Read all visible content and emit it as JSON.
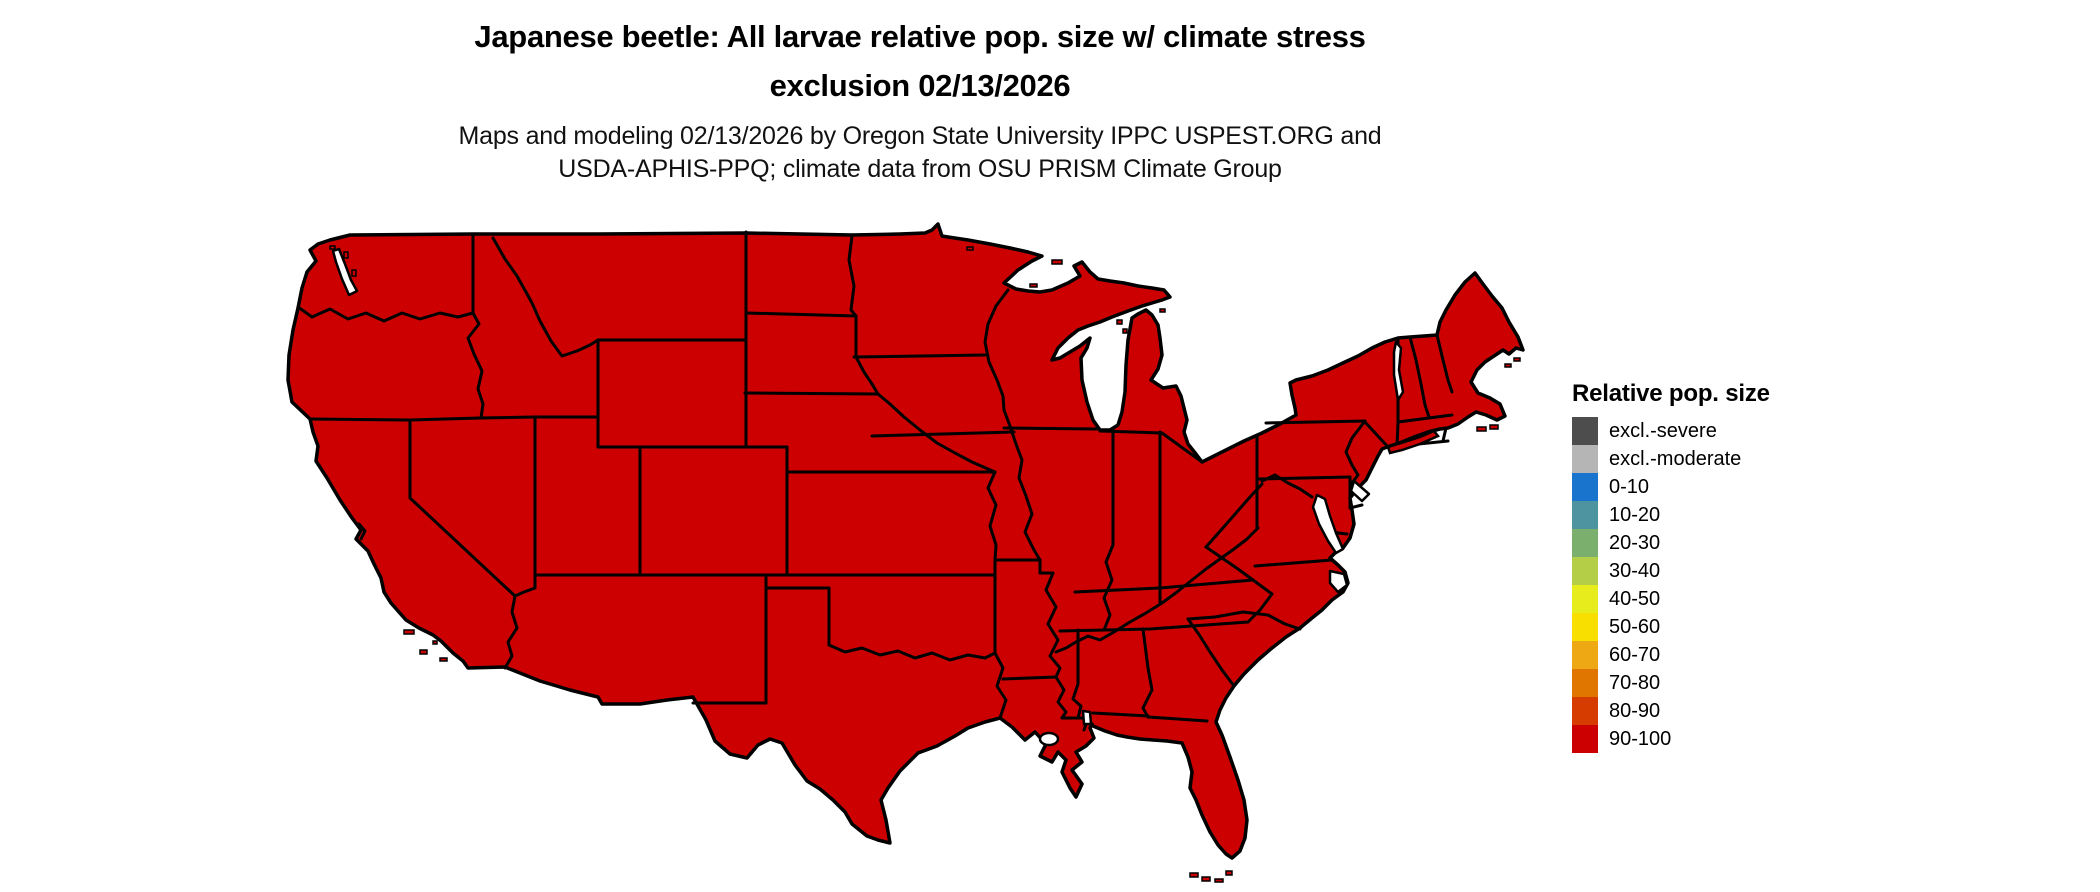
{
  "title": {
    "line1": "Japanese beetle: All larvae relative pop. size w/ climate stress",
    "line2": "exclusion 02/13/2026"
  },
  "subtitle": {
    "line1": "Maps and modeling 02/13/2026 by Oregon State University IPPC USPEST.ORG and",
    "line2": "USDA-APHIS-PPQ; climate data from OSU PRISM Climate Group"
  },
  "legend": {
    "title": "Relative pop. size",
    "items": [
      {
        "label": "excl.-severe",
        "color": "#4D4D4D"
      },
      {
        "label": "excl.-moderate",
        "color": "#B5B5B5"
      },
      {
        "label": "0-10",
        "color": "#1874CD"
      },
      {
        "label": "10-20",
        "color": "#4D94A0"
      },
      {
        "label": "20-30",
        "color": "#7BAF6E"
      },
      {
        "label": "30-40",
        "color": "#B5CE47"
      },
      {
        "label": "40-50",
        "color": "#E7EC1C"
      },
      {
        "label": "50-60",
        "color": "#F8DF00"
      },
      {
        "label": "60-70",
        "color": "#EDA813"
      },
      {
        "label": "70-80",
        "color": "#E07500"
      },
      {
        "label": "80-90",
        "color": "#D63C00"
      },
      {
        "label": "90-100",
        "color": "#CC0000"
      }
    ]
  },
  "map": {
    "region": "Contiguous United States",
    "fill": "#CC0000",
    "border": "#000000",
    "water": "#FFFFFF",
    "value_shown": "All states in 90-100 relative population size class"
  }
}
